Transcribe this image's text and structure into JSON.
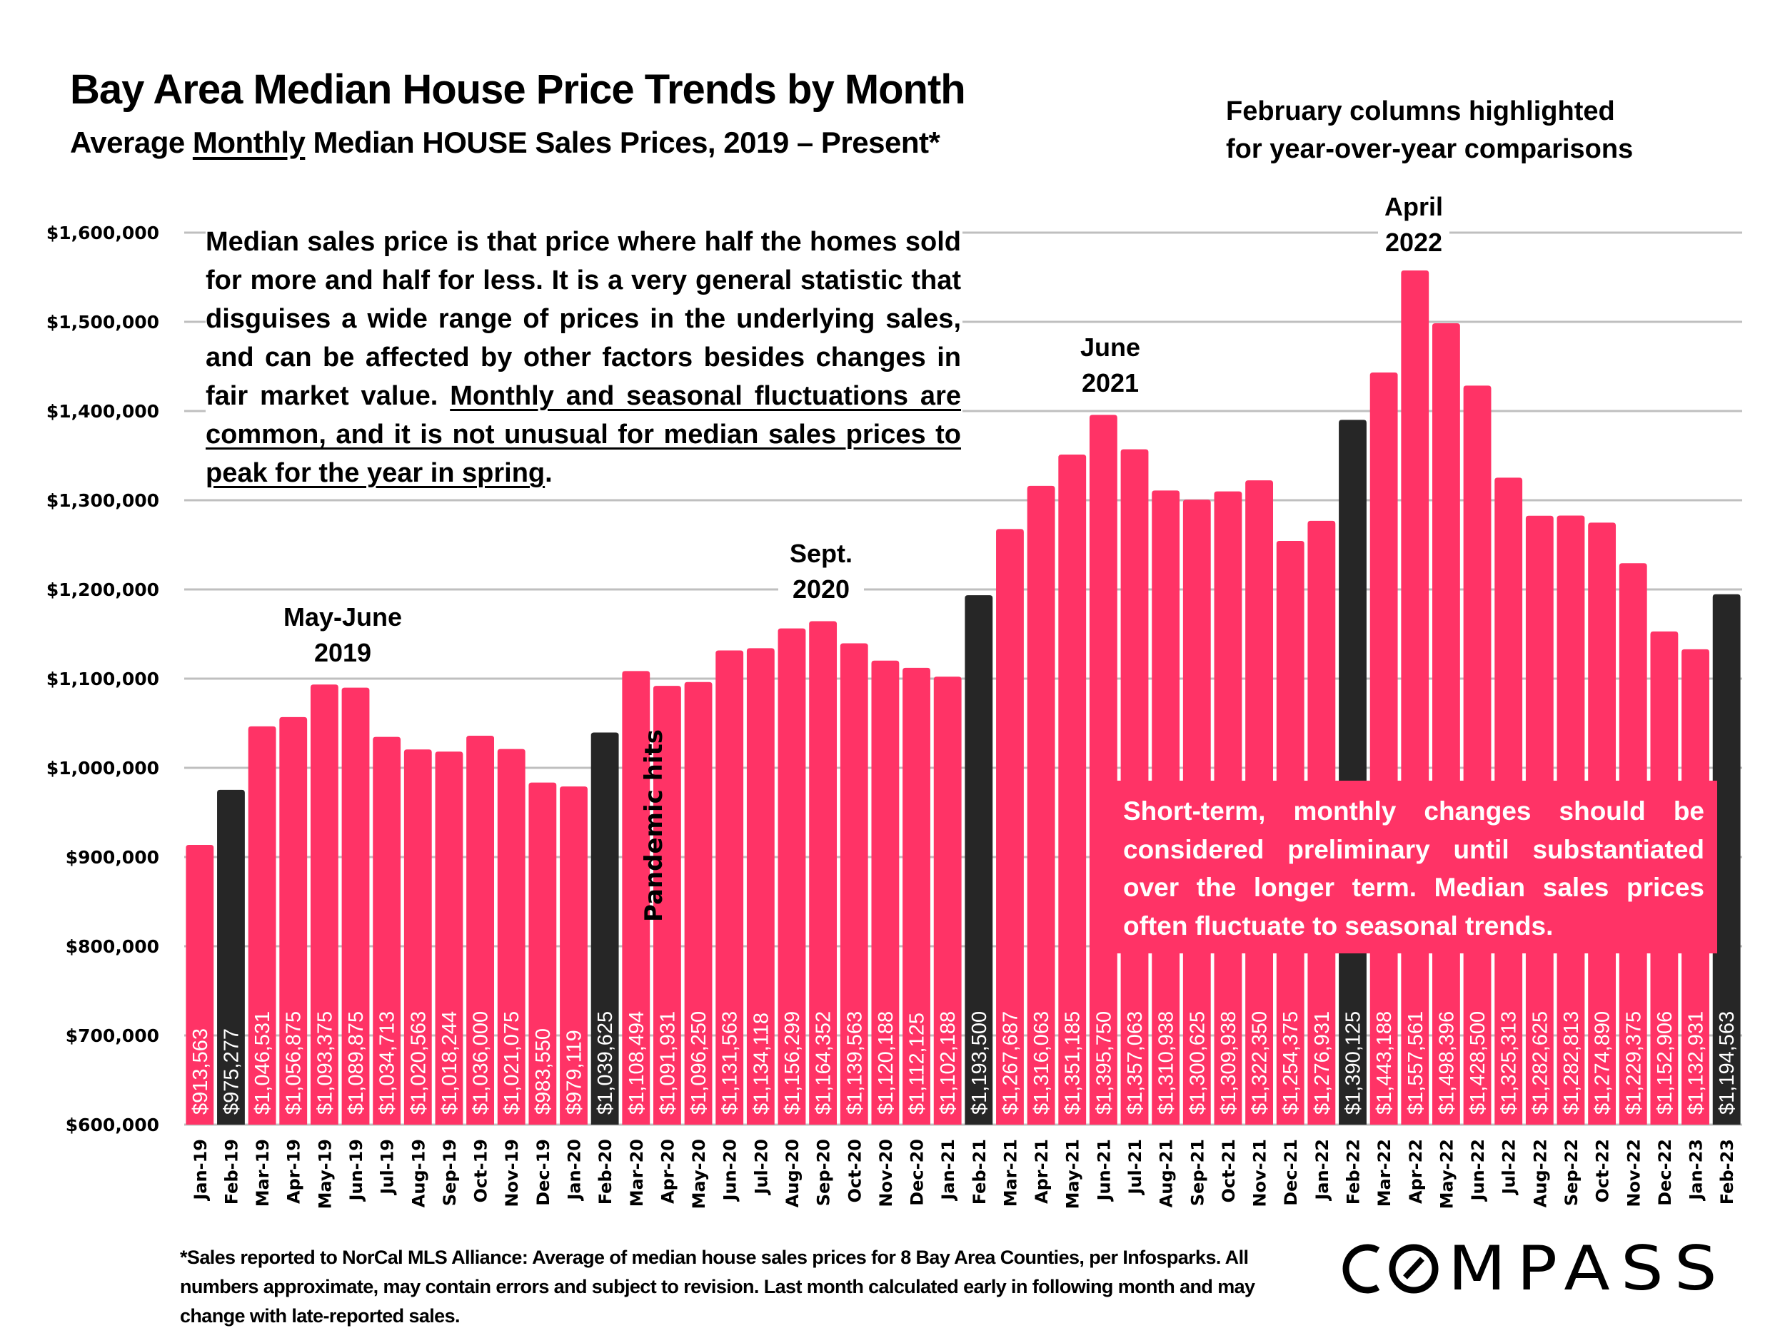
{
  "header": {
    "title": "Bay Area Median House Price Trends by Month",
    "subtitle_pre": "Average ",
    "subtitle_underlined": "Monthly",
    "subtitle_post": " Median HOUSE Sales Prices, 2019 – Present*",
    "february_note_line1": "February columns highlighted",
    "february_note_line2": "for year-over-year comparisons"
  },
  "explainer": {
    "plain": "Median sales price is that price where half the homes sold for more and half for less. It is a very general statistic that disguises a wide range of prices in the underlying sales, and can be affected by other factors besides changes in fair market value. ",
    "underlined": "Monthly and seasonal fluctuations are common, and it is not unusual for median sales prices to peak for the year in spring",
    "end": "."
  },
  "caution_box": {
    "text": "Short-term, monthly changes should be considered preliminary until substantiated over the longer term. Median sales prices often fluctuate to seasonal trends."
  },
  "annotations": {
    "may_june_2019_line1": "May-June",
    "may_june_2019_line2": "2019",
    "sept_2020_line1": "Sept.",
    "sept_2020_line2": "2020",
    "june_2021_line1": "June",
    "june_2021_line2": "2021",
    "april_2022_line1": "April",
    "april_2022_line2": "2022",
    "pandemic": "Pandemic hits"
  },
  "footnote": "*Sales reported to NorCal MLS Alliance: Average of median house sales prices for 8 Bay Area Counties, per Infosparks. All numbers approximate, may contain errors and subject to revision. Last month calculated early in following month and may change with late-reported sales.",
  "logo": {
    "text": "COMPASS"
  },
  "colors": {
    "regular_bar": "#ff3366",
    "february_bar": "#262626",
    "gridline": "#bfbfbf"
  },
  "chart_data": {
    "type": "bar",
    "title": "Bay Area Median House Price Trends by Month",
    "subtitle": "Average Monthly Median HOUSE Sales Prices, 2019 – Present*",
    "xlabel": "",
    "ylabel": "",
    "ylim": [
      600000,
      1600000
    ],
    "yticks": [
      600000,
      700000,
      800000,
      900000,
      1000000,
      1100000,
      1200000,
      1300000,
      1400000,
      1500000,
      1600000
    ],
    "ytick_labels": [
      "$600,000",
      "$700,000",
      "$800,000",
      "$900,000",
      "$1,000,000",
      "$1,100,000",
      "$1,200,000",
      "$1,300,000",
      "$1,400,000",
      "$1,500,000",
      "$1,600,000"
    ],
    "grid": true,
    "highlight_rule": "February columns highlighted for year-over-year comparisons",
    "categories": [
      "Jan-19",
      "Feb-19",
      "Mar-19",
      "Apr-19",
      "May-19",
      "Jun-19",
      "Jul-19",
      "Aug-19",
      "Sep-19",
      "Oct-19",
      "Nov-19",
      "Dec-19",
      "Jan-20",
      "Feb-20",
      "Mar-20",
      "Apr-20",
      "May-20",
      "Jun-20",
      "Jul-20",
      "Aug-20",
      "Sep-20",
      "Oct-20",
      "Nov-20",
      "Dec-20",
      "Jan-21",
      "Feb-21",
      "Mar-21",
      "Apr-21",
      "May-21",
      "Jun-21",
      "Jul-21",
      "Aug-21",
      "Sep-21",
      "Oct-21",
      "Nov-21",
      "Dec-21",
      "Jan-22",
      "Feb-22",
      "Mar-22",
      "Apr-22",
      "May-22",
      "Jun-22",
      "Jul-22",
      "Aug-22",
      "Sep-22",
      "Oct-22",
      "Nov-22",
      "Dec-22",
      "Jan-23",
      "Feb-23"
    ],
    "values": [
      913563,
      975277,
      1046531,
      1056875,
      1093375,
      1089875,
      1034713,
      1020563,
      1018244,
      1036000,
      1021075,
      983550,
      979119,
      1039625,
      1108494,
      1091931,
      1096250,
      1131563,
      1134118,
      1156299,
      1164352,
      1139563,
      1120188,
      1112125,
      1102188,
      1193500,
      1267687,
      1316063,
      1351185,
      1395750,
      1357063,
      1310938,
      1300625,
      1309938,
      1322350,
      1254375,
      1276931,
      1390125,
      1443188,
      1557561,
      1498396,
      1428500,
      1325313,
      1282625,
      1282813,
      1274890,
      1229375,
      1152906,
      1132931,
      1194563
    ],
    "value_labels": [
      "$913,563",
      "$975,277",
      "$1,046,531",
      "$1,056,875",
      "$1,093,375",
      "$1,089,875",
      "$1,034,713",
      "$1,020,563",
      "$1,018,244",
      "$1,036,000",
      "$1,021,075",
      "$983,550",
      "$979,119",
      "$1,039,625",
      "$1,108,494",
      "$1,091,931",
      "$1,096,250",
      "$1,131,563",
      "$1,134,118",
      "$1,156,299",
      "$1,164,352",
      "$1,139,563",
      "$1,120,188",
      "$1,112,125",
      "$1,102,188",
      "$1,193,500",
      "$1,267,687",
      "$1,316,063",
      "$1,351,185",
      "$1,395,750",
      "$1,357,063",
      "$1,310,938",
      "$1,300,625",
      "$1,309,938",
      "$1,322,350",
      "$1,254,375",
      "$1,276,931",
      "$1,390,125",
      "$1,443,188",
      "$1,557,561",
      "$1,498,396",
      "$1,428,500",
      "$1,325,313",
      "$1,282,625",
      "$1,282,813",
      "$1,274,890",
      "$1,229,375",
      "$1,152,906",
      "$1,132,931",
      "$1,194,563"
    ],
    "highlighted": [
      "Feb-19",
      "Feb-20",
      "Feb-21",
      "Feb-22",
      "Feb-23"
    ]
  }
}
